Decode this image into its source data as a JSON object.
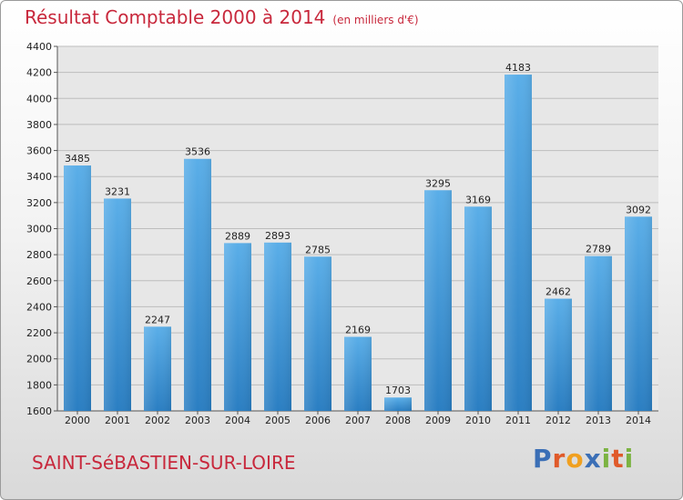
{
  "header": {
    "title": "Résultat Comptable 2000 à 2014",
    "unit": "(en milliers d'€)"
  },
  "footer": {
    "town": "SAINT-SéBASTIEN-SUR-LOIRE",
    "logo": [
      "P",
      "r",
      "o",
      "x",
      "i",
      "t",
      "i"
    ],
    "logo_colors": [
      "#3b6fb6",
      "#e05a2a",
      "#f0a020",
      "#3b6fb6",
      "#7cb342",
      "#e05a2a",
      "#7cb342"
    ]
  },
  "colors": {
    "bar_light": "#5aaee8",
    "bar_dark": "#2a7ec2",
    "grid": "#bdbdbd",
    "plot_bg": "#e7e7e7",
    "title": "#c8283c"
  },
  "chart_data": {
    "type": "bar",
    "title": "Résultat Comptable 2000 à 2014",
    "xlabel": "",
    "ylabel": "",
    "ylim": [
      1600,
      4400
    ],
    "yticks": [
      1600,
      1800,
      2000,
      2200,
      2400,
      2600,
      2800,
      3000,
      3200,
      3400,
      3600,
      3800,
      4000,
      4200,
      4400
    ],
    "categories": [
      "2000",
      "2001",
      "2002",
      "2003",
      "2004",
      "2005",
      "2006",
      "2007",
      "2008",
      "2009",
      "2010",
      "2011",
      "2012",
      "2013",
      "2014"
    ],
    "values": [
      3485,
      3231,
      2247,
      3536,
      2889,
      2893,
      2785,
      2169,
      1703,
      3295,
      3169,
      4183,
      2462,
      2789,
      3092
    ],
    "grid": true,
    "legend": "none"
  }
}
